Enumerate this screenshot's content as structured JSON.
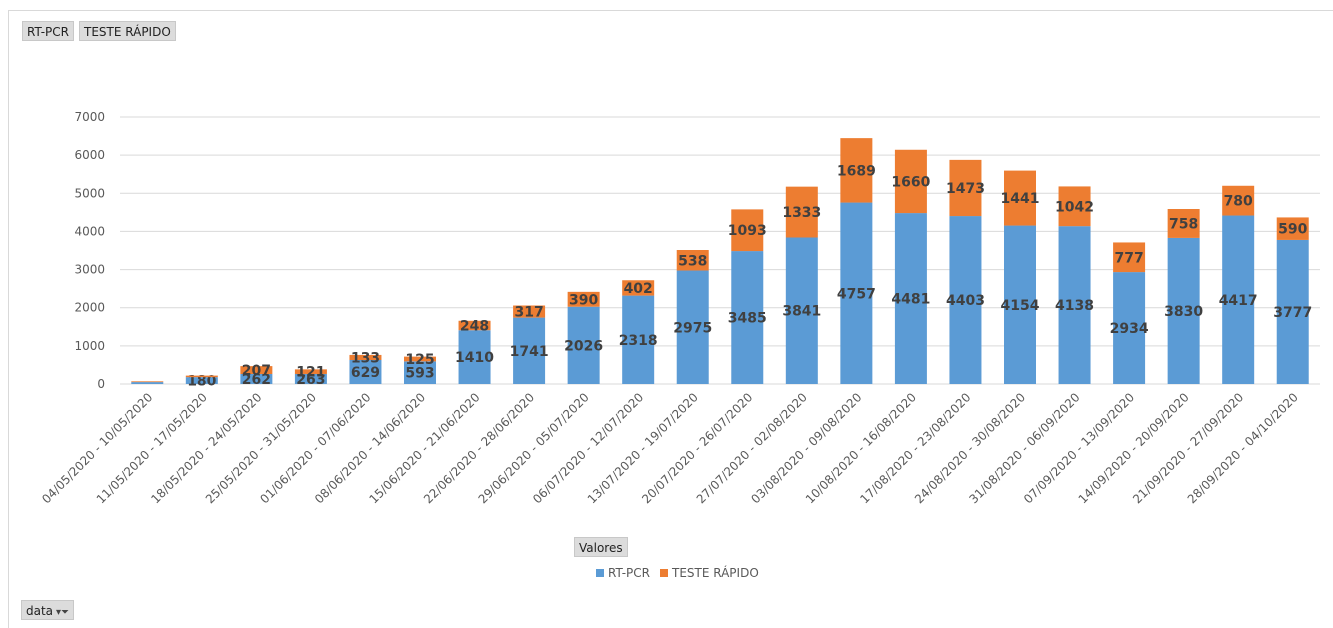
{
  "field_buttons": {
    "rtpcr": "RT-PCR",
    "teste": "TESTE RÁPIDO",
    "valores": "Valores",
    "data": "data"
  },
  "colors": {
    "rtpcr": "#5b9bd5",
    "teste": "#ed7d31",
    "grid": "#d9d9d9"
  },
  "chart_data": {
    "type": "bar",
    "stacked": true,
    "categories": [
      "04/05/2020 - 10/05/2020",
      "11/05/2020 - 17/05/2020",
      "18/05/2020 - 24/05/2020",
      "25/05/2020 - 31/05/2020",
      "01/06/2020 - 07/06/2020",
      "08/06/2020 - 14/06/2020",
      "15/06/2020 - 21/06/2020",
      "22/06/2020 - 28/06/2020",
      "29/06/2020 - 05/07/2020",
      "06/07/2020 - 12/07/2020",
      "13/07/2020 - 19/07/2020",
      "20/07/2020 - 26/07/2020",
      "27/07/2020 - 02/08/2020",
      "03/08/2020 - 09/08/2020",
      "10/08/2020 - 16/08/2020",
      "17/08/2020 - 23/08/2020",
      "24/08/2020 - 30/08/2020",
      "31/08/2020 - 06/09/2020",
      "07/09/2020 - 13/09/2020",
      "14/09/2020 - 20/09/2020",
      "21/09/2020 - 27/09/2020",
      "28/09/2020 - 04/10/2020"
    ],
    "series": [
      {
        "name": "RT-PCR",
        "values": [
          50,
          180,
          262,
          263,
          629,
          593,
          1410,
          1741,
          2026,
          2318,
          2975,
          3485,
          3841,
          4757,
          4481,
          4403,
          4154,
          4138,
          2934,
          3830,
          4417,
          3777
        ],
        "labels": [
          null,
          180,
          262,
          263,
          629,
          593,
          1410,
          1741,
          2026,
          2318,
          2975,
          3485,
          3841,
          4757,
          4481,
          4403,
          4154,
          4138,
          2934,
          3830,
          4417,
          3777
        ]
      },
      {
        "name": "TESTE RÁPIDO",
        "values": [
          20,
          40,
          207,
          121,
          133,
          125,
          248,
          317,
          390,
          402,
          538,
          1093,
          1333,
          1689,
          1660,
          1473,
          1441,
          1042,
          777,
          758,
          780,
          590
        ],
        "labels": [
          null,
          null,
          207,
          121,
          133,
          125,
          248,
          317,
          390,
          402,
          538,
          1093,
          1333,
          1689,
          1660,
          1473,
          1441,
          1042,
          777,
          758,
          780,
          590
        ]
      }
    ],
    "yticks": [
      0,
      1000,
      2000,
      3000,
      4000,
      5000,
      6000,
      7000
    ],
    "ylim": [
      0,
      7000
    ],
    "grid": true,
    "legend_position": "bottom"
  }
}
